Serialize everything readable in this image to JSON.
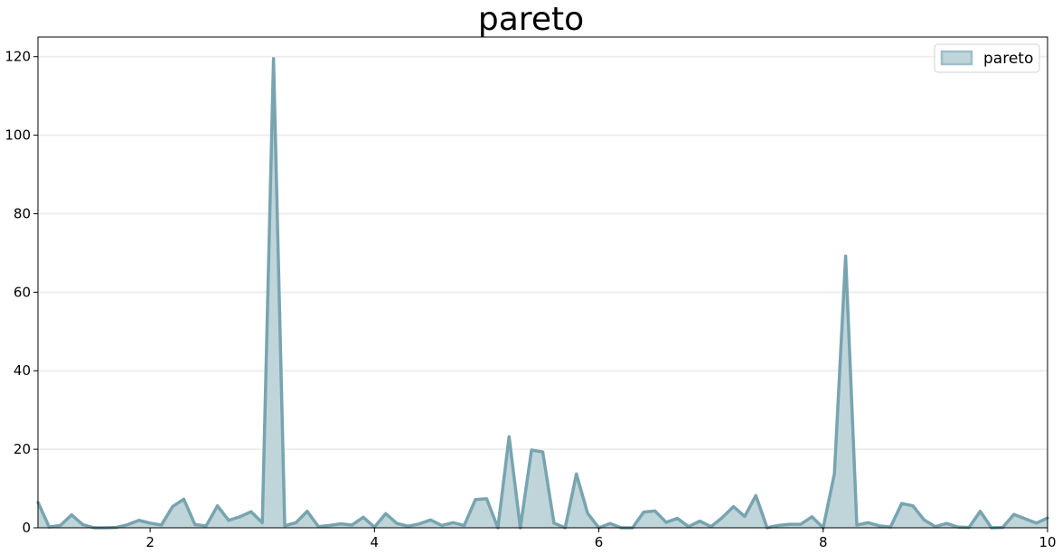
{
  "chart_data": {
    "type": "area",
    "title": "pareto",
    "xlabel": "",
    "ylabel": "",
    "xlim": [
      1,
      10
    ],
    "ylim": [
      0,
      125
    ],
    "x_ticks": [
      2,
      4,
      6,
      8,
      10
    ],
    "y_ticks": [
      0,
      20,
      40,
      60,
      80,
      100,
      120
    ],
    "grid": "horizontal",
    "legend_position": "top-right",
    "colors": {
      "fill": "#bfd5da",
      "line": "#78a4b0",
      "legend_edge": "#9dbec7"
    },
    "series": [
      {
        "name": "pareto",
        "x": [
          1.0,
          1.1,
          1.2,
          1.3,
          1.4,
          1.5,
          1.6,
          1.7,
          1.8,
          1.9,
          2.0,
          2.1,
          2.2,
          2.3,
          2.4,
          2.5,
          2.6,
          2.7,
          2.8,
          2.9,
          3.0,
          3.1,
          3.2,
          3.3,
          3.4,
          3.5,
          3.6,
          3.7,
          3.8,
          3.9,
          4.0,
          4.1,
          4.2,
          4.3,
          4.4,
          4.5,
          4.6,
          4.7,
          4.8,
          4.9,
          5.0,
          5.1,
          5.2,
          5.3,
          5.4,
          5.5,
          5.6,
          5.7,
          5.8,
          5.9,
          6.0,
          6.1,
          6.2,
          6.3,
          6.4,
          6.5,
          6.6,
          6.7,
          6.8,
          6.9,
          7.0,
          7.1,
          7.2,
          7.3,
          7.4,
          7.5,
          7.6,
          7.7,
          7.8,
          7.9,
          8.0,
          8.1,
          8.2,
          8.3,
          8.4,
          8.5,
          8.6,
          8.7,
          8.8,
          8.9,
          9.0,
          9.1,
          9.2,
          9.3,
          9.4,
          9.5,
          9.6,
          9.7,
          9.8,
          9.9,
          10.0
        ],
        "y": [
          6.5,
          0.2,
          0.6,
          3.3,
          0.8,
          0.0,
          0.0,
          0.1,
          0.8,
          1.9,
          1.2,
          0.7,
          5.4,
          7.3,
          0.8,
          0.5,
          5.6,
          1.9,
          2.8,
          4.1,
          1.3,
          119.5,
          0.5,
          1.3,
          4.2,
          0.3,
          0.6,
          1.0,
          0.7,
          2.7,
          0.2,
          3.6,
          1.1,
          0.4,
          1.0,
          2.0,
          0.6,
          1.3,
          0.6,
          7.2,
          7.4,
          0.0,
          23.2,
          0.0,
          19.8,
          19.3,
          1.2,
          0.0,
          13.7,
          3.7,
          0.0,
          1.1,
          0.0,
          0.0,
          4.0,
          4.3,
          1.4,
          2.4,
          0.3,
          1.7,
          0.3,
          2.6,
          5.4,
          2.9,
          8.2,
          0.0,
          0.6,
          0.9,
          0.9,
          2.8,
          0.0,
          13.8,
          69.2,
          0.7,
          1.3,
          0.5,
          0.2,
          6.2,
          5.6,
          2.0,
          0.3,
          1.1,
          0.2,
          0.1,
          4.2,
          0.0,
          0.1,
          3.4,
          2.3,
          1.2,
          2.5
        ]
      }
    ]
  }
}
